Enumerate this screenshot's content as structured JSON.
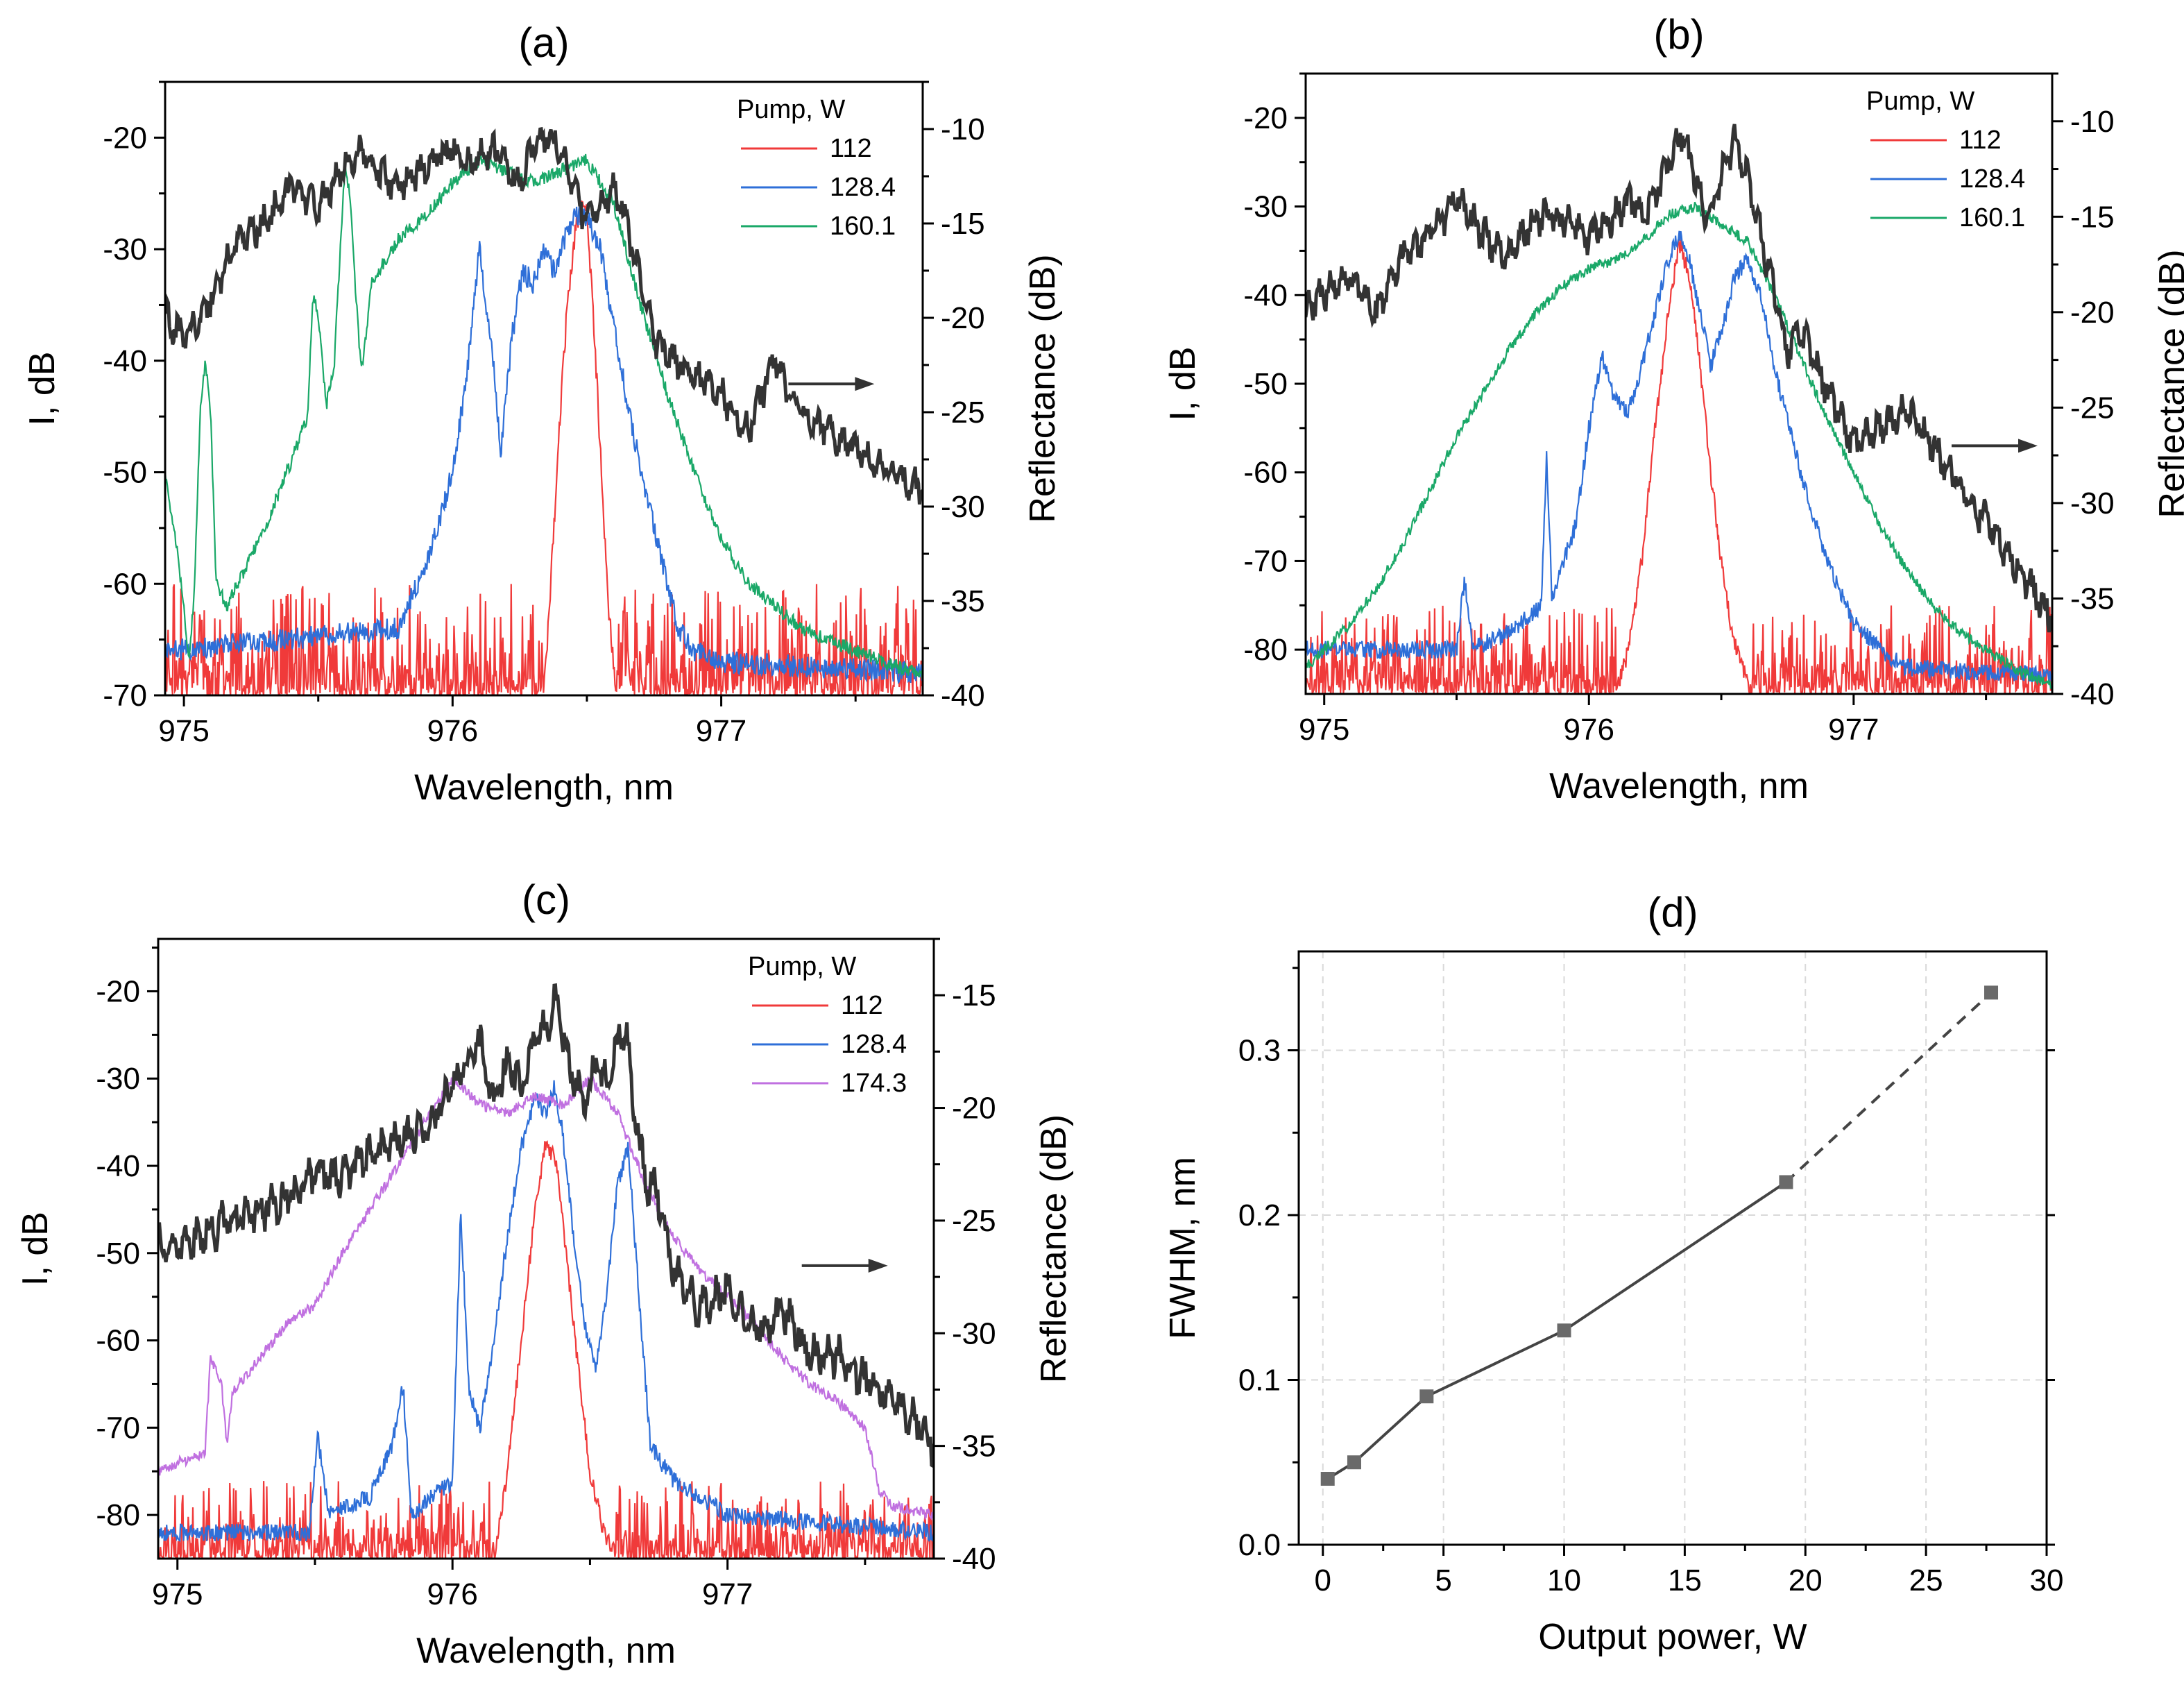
{
  "colors": {
    "red": "#f03a3a",
    "blue": "#2e6fd8",
    "green": "#1aa868",
    "purple": "#c070e0",
    "gray": "#333333",
    "marker": "#6a6a6a"
  },
  "chart_data": [
    {
      "panel": "a",
      "type": "line",
      "title": "(a)",
      "xlabel": "Wavelength, nm",
      "ylabel": "I, dB",
      "ylabel_right": "Reflectance (dB)",
      "xlim": [
        974.93,
        977.75
      ],
      "ylim": [
        -70,
        -15
      ],
      "ylim_right": [
        -40,
        -7.5
      ],
      "xticks": [
        975,
        976,
        977
      ],
      "xtick_labels": [
        "975",
        "976",
        "977"
      ],
      "yticks": [
        -70,
        -60,
        -50,
        -40,
        -30,
        -20
      ],
      "ytick_labels": [
        "-70",
        "-60",
        "-50",
        "-40",
        "-30",
        "-20"
      ],
      "yticks_right": [
        -40,
        -35,
        -30,
        -25,
        -20,
        -15,
        -10
      ],
      "ytick_labels_right": [
        "-40",
        "-35",
        "-30",
        "-25",
        "-20",
        "-15",
        "-10"
      ],
      "legend_title": "Pump, W",
      "noise_floor": [
        -70,
        -63
      ],
      "series": [
        {
          "name": "112",
          "color": "red",
          "noise": true,
          "x": [
            974.93,
            976.34,
            976.37,
            976.4,
            976.43,
            976.46,
            976.48,
            976.5,
            976.52,
            976.55,
            976.58,
            976.61,
            977.75
          ],
          "y": [
            -70,
            -70,
            -58,
            -45,
            -34,
            -28,
            -26,
            -27,
            -34,
            -48,
            -62,
            -70,
            -70
          ]
        },
        {
          "name": "128.4",
          "color": "blue",
          "noise": true,
          "x": [
            974.93,
            975.8,
            975.92,
            976.0,
            976.05,
            976.1,
            976.15,
            976.18,
            976.22,
            976.26,
            976.3,
            976.34,
            976.38,
            976.42,
            976.46,
            976.5,
            976.55,
            976.6,
            976.66,
            976.72,
            976.78,
            976.84,
            976.9,
            977.0,
            977.75
          ],
          "y": [
            -66,
            -64,
            -57,
            -50,
            -42,
            -30,
            -40,
            -48,
            -38,
            -32,
            -33,
            -30,
            -32,
            -29,
            -27,
            -27,
            -30,
            -37,
            -45,
            -52,
            -58,
            -64,
            -66,
            -67,
            -68
          ]
        },
        {
          "name": "160.1",
          "color": "green",
          "noise": false,
          "x": [
            974.93,
            974.98,
            975.02,
            975.04,
            975.06,
            975.08,
            975.1,
            975.12,
            975.16,
            975.2,
            975.3,
            975.4,
            975.46,
            975.48,
            975.5,
            975.53,
            975.56,
            975.6,
            975.62,
            975.64,
            975.66,
            975.7,
            975.8,
            975.9,
            976.0,
            976.1,
            976.2,
            976.3,
            976.4,
            976.5,
            976.6,
            976.7,
            976.8,
            976.9,
            977.0,
            977.1,
            977.2,
            977.3,
            977.4,
            977.5,
            977.6,
            977.75
          ],
          "y": [
            -50,
            -58,
            -67,
            -60,
            -45,
            -40,
            -45,
            -60,
            -62,
            -60,
            -55,
            -49,
            -45,
            -34,
            -36,
            -44,
            -40,
            -22,
            -26,
            -34,
            -41,
            -33,
            -29,
            -27,
            -24,
            -22,
            -23,
            -24,
            -23,
            -22,
            -26,
            -35,
            -43,
            -50,
            -56,
            -60,
            -62,
            -64,
            -65,
            -66,
            -67,
            -68
          ]
        },
        {
          "name": "Reflectance",
          "color": "gray",
          "noise": false,
          "axis": "right",
          "legend": false,
          "x": [
            974.93,
            975.0,
            975.1,
            975.2,
            975.3,
            975.4,
            975.5,
            975.6,
            975.65,
            975.7,
            975.8,
            975.9,
            976.0,
            976.05,
            976.1,
            976.15,
            976.2,
            976.25,
            976.3,
            976.35,
            976.4,
            976.45,
            976.5,
            976.55,
            976.6,
            976.65,
            976.7,
            976.75,
            976.8,
            976.9,
            977.0,
            977.1,
            977.2,
            977.25,
            977.3,
            977.4,
            977.5,
            977.6,
            977.75
          ],
          "y": [
            -20,
            -21,
            -19,
            -16,
            -15,
            -13,
            -14,
            -12,
            -11,
            -12,
            -13,
            -12,
            -11,
            -12,
            -11.5,
            -11,
            -12,
            -13,
            -11,
            -10.5,
            -11,
            -13,
            -15,
            -14,
            -13,
            -15,
            -18,
            -21,
            -22,
            -23,
            -24,
            -26,
            -22,
            -24,
            -25,
            -26,
            -27,
            -28,
            -29
          ]
        }
      ],
      "annotation_arrow": {
        "x": 977.25,
        "y": -23.5,
        "axis": "right",
        "direction": "right"
      }
    },
    {
      "panel": "b",
      "type": "line",
      "title": "(b)",
      "xlabel": "Wavelength, nm",
      "ylabel": "I, dB",
      "ylabel_right": "Reflectance (dB)",
      "xlim": [
        974.93,
        977.75
      ],
      "ylim": [
        -85,
        -15
      ],
      "ylim_right": [
        -40,
        -7.5
      ],
      "xticks": [
        975,
        976,
        977
      ],
      "xtick_labels": [
        "975",
        "976",
        "977"
      ],
      "yticks": [
        -80,
        -70,
        -60,
        -50,
        -40,
        -30,
        -20
      ],
      "ytick_labels": [
        "-80",
        "-70",
        "-60",
        "-50",
        "-40",
        "-30",
        "-20"
      ],
      "yticks_right": [
        -40,
        -35,
        -30,
        -25,
        -20,
        -15,
        -10
      ],
      "ytick_labels_right": [
        "-40",
        "-35",
        "-30",
        "-25",
        "-20",
        "-15",
        "-10"
      ],
      "legend_title": "Pump, W",
      "noise_floor": [
        -85,
        -78
      ],
      "series": [
        {
          "name": "112",
          "color": "red",
          "noise": true,
          "x": [
            974.93,
            976.1,
            976.15,
            976.2,
            976.25,
            976.3,
            976.34,
            976.38,
            976.42,
            976.46,
            976.5,
            976.54,
            976.58,
            976.62,
            977.75
          ],
          "y": [
            -85,
            -85,
            -80,
            -70,
            -55,
            -42,
            -34,
            -38,
            -48,
            -60,
            -70,
            -78,
            -82,
            -85,
            -85
          ]
        },
        {
          "name": "128.4",
          "color": "blue",
          "noise": true,
          "x": [
            974.93,
            975.5,
            975.53,
            975.56,
            975.7,
            975.82,
            975.84,
            975.86,
            975.95,
            976.0,
            976.05,
            976.1,
            976.15,
            976.2,
            976.25,
            976.3,
            976.34,
            976.38,
            976.42,
            976.46,
            976.5,
            976.55,
            976.6,
            976.65,
            976.7,
            976.8,
            976.9,
            977.0,
            977.1,
            977.2,
            977.75
          ],
          "y": [
            -80,
            -80,
            -72,
            -80,
            -78,
            -75,
            -58,
            -74,
            -66,
            -55,
            -47,
            -52,
            -53,
            -48,
            -42,
            -36,
            -33,
            -36,
            -42,
            -48,
            -44,
            -38,
            -36,
            -40,
            -48,
            -60,
            -70,
            -77,
            -80,
            -82,
            -83
          ]
        },
        {
          "name": "160.1",
          "color": "green",
          "noise": false,
          "x": [
            974.93,
            975.0,
            975.1,
            975.2,
            975.3,
            975.4,
            975.5,
            975.6,
            975.7,
            975.8,
            975.9,
            976.0,
            976.1,
            976.2,
            976.3,
            976.4,
            976.5,
            976.6,
            976.7,
            976.8,
            976.9,
            977.0,
            977.1,
            977.2,
            977.3,
            977.4,
            977.5,
            977.6,
            977.75
          ],
          "y": [
            -82,
            -80,
            -77,
            -73,
            -68,
            -62,
            -56,
            -51,
            -46,
            -42,
            -39,
            -37,
            -36,
            -34,
            -31,
            -30,
            -32,
            -34,
            -40,
            -47,
            -54,
            -60,
            -66,
            -71,
            -75,
            -78,
            -80,
            -82,
            -84
          ]
        },
        {
          "name": "Reflectance",
          "color": "gray",
          "noise": false,
          "axis": "right",
          "legend": false,
          "x": [
            974.93,
            975.0,
            975.1,
            975.2,
            975.3,
            975.4,
            975.5,
            975.6,
            975.7,
            975.8,
            975.9,
            976.0,
            976.1,
            976.15,
            976.2,
            976.25,
            976.3,
            976.35,
            976.4,
            976.45,
            976.5,
            976.55,
            976.6,
            976.65,
            976.7,
            976.75,
            976.8,
            976.9,
            977.0,
            977.1,
            977.2,
            977.3,
            977.4,
            977.5,
            977.6,
            977.7,
            977.75
          ],
          "y": [
            -20,
            -19,
            -18,
            -20,
            -17,
            -16,
            -14,
            -16,
            -17,
            -15,
            -15,
            -16,
            -15,
            -14,
            -15,
            -14,
            -12,
            -10.5,
            -13,
            -15,
            -13,
            -11,
            -13,
            -16,
            -19,
            -22,
            -21,
            -24,
            -27,
            -26,
            -25,
            -27,
            -29,
            -31,
            -33,
            -35,
            -36
          ]
        }
      ],
      "annotation_arrow": {
        "x": 977.37,
        "y": -27,
        "axis": "right",
        "direction": "right"
      }
    },
    {
      "panel": "c",
      "type": "line",
      "title": "(c)",
      "xlabel": "Wavelength, nm",
      "ylabel": "I, dB",
      "ylabel_right": "Reflectance (dB)",
      "xlim": [
        974.93,
        977.75
      ],
      "ylim": [
        -85,
        -14
      ],
      "ylim_right": [
        -40,
        -12.5
      ],
      "xticks": [
        975,
        976,
        977
      ],
      "xtick_labels": [
        "975",
        "976",
        "977"
      ],
      "yticks": [
        -80,
        -70,
        -60,
        -50,
        -40,
        -30,
        -20
      ],
      "ytick_labels": [
        "-80",
        "-70",
        "-60",
        "-50",
        "-40",
        "-30",
        "-20"
      ],
      "yticks_right": [
        -40,
        -35,
        -30,
        -25,
        -20,
        -15
      ],
      "ytick_labels_right": [
        "-40",
        "-35",
        "-30",
        "-25",
        "-20",
        "-15"
      ],
      "legend_title": "Pump, W",
      "noise_floor": [
        -85,
        -79
      ],
      "series": [
        {
          "name": "112",
          "color": "red",
          "noise": true,
          "x": [
            974.93,
            976.15,
            976.2,
            976.25,
            976.3,
            976.34,
            976.38,
            976.42,
            976.46,
            976.5,
            976.55,
            976.6,
            977.75
          ],
          "y": [
            -85,
            -85,
            -75,
            -60,
            -45,
            -37,
            -40,
            -52,
            -64,
            -75,
            -82,
            -85,
            -85
          ]
        },
        {
          "name": "128.4",
          "color": "blue",
          "noise": true,
          "x": [
            974.93,
            975.48,
            975.51,
            975.55,
            975.7,
            975.78,
            975.82,
            975.85,
            976.0,
            976.03,
            976.06,
            976.1,
            976.15,
            976.2,
            976.25,
            976.3,
            976.34,
            976.37,
            976.4,
            976.44,
            976.48,
            976.52,
            976.56,
            976.6,
            976.64,
            976.68,
            976.72,
            976.8,
            976.9,
            977.0,
            977.75
          ],
          "y": [
            -82,
            -82,
            -71,
            -80,
            -78,
            -72,
            -65,
            -80,
            -76,
            -45,
            -66,
            -70,
            -60,
            -48,
            -38,
            -32,
            -34,
            -31,
            -36,
            -48,
            -58,
            -63,
            -55,
            -42,
            -38,
            -56,
            -72,
            -76,
            -78,
            -80,
            -82
          ]
        },
        {
          "name": "174.3",
          "color": "purple",
          "noise": false,
          "x": [
            974.93,
            975.0,
            975.1,
            975.12,
            975.16,
            975.18,
            975.2,
            975.3,
            975.4,
            975.5,
            975.6,
            975.7,
            975.8,
            975.9,
            976.0,
            976.1,
            976.2,
            976.3,
            976.4,
            976.5,
            976.6,
            976.7,
            976.8,
            976.9,
            977.0,
            977.1,
            977.2,
            977.3,
            977.4,
            977.5,
            977.55,
            977.6,
            977.75
          ],
          "y": [
            -75,
            -74,
            -73,
            -62,
            -65,
            -72,
            -66,
            -62,
            -58,
            -56,
            -50,
            -45,
            -40,
            -35,
            -30,
            -33,
            -34,
            -32,
            -33,
            -30,
            -34,
            -42,
            -48,
            -52,
            -55,
            -58,
            -62,
            -65,
            -67,
            -70,
            -77,
            -79,
            -80
          ]
        },
        {
          "name": "Reflectance",
          "color": "gray",
          "noise": false,
          "axis": "right",
          "legend": false,
          "x": [
            974.93,
            975.0,
            975.1,
            975.2,
            975.3,
            975.4,
            975.5,
            975.6,
            975.7,
            975.8,
            975.9,
            976.0,
            976.05,
            976.1,
            976.15,
            976.2,
            976.25,
            976.3,
            976.35,
            976.38,
            976.42,
            976.48,
            976.52,
            976.56,
            976.6,
            976.63,
            976.66,
            976.7,
            976.75,
            976.8,
            976.9,
            977.0,
            977.1,
            977.2,
            977.3,
            977.4,
            977.5,
            977.6,
            977.7,
            977.75
          ],
          "y": [
            -26,
            -26.5,
            -25.5,
            -25,
            -24.5,
            -24,
            -23,
            -23,
            -22,
            -21.5,
            -21,
            -19,
            -18,
            -17,
            -20,
            -18,
            -19,
            -17,
            -16,
            -15,
            -18,
            -20,
            -18,
            -19,
            -17,
            -16.5,
            -20,
            -23,
            -24,
            -27,
            -29,
            -28,
            -30,
            -29,
            -31,
            -31,
            -32,
            -33,
            -34,
            -35
          ]
        }
      ],
      "annotation_arrow": {
        "x": 977.27,
        "y": -27,
        "axis": "right",
        "direction": "right"
      }
    },
    {
      "panel": "d",
      "type": "scatter",
      "title": "(d)",
      "xlabel": "Output power, W",
      "ylabel": "FWHM, nm",
      "xlim": [
        -1,
        30
      ],
      "ylim": [
        0,
        0.36
      ],
      "xticks": [
        0,
        5,
        10,
        15,
        20,
        25,
        30
      ],
      "xtick_labels": [
        "0",
        "5",
        "10",
        "15",
        "20",
        "25",
        "30"
      ],
      "yticks": [
        0.0,
        0.1,
        0.2,
        0.3
      ],
      "ytick_labels": [
        "0.0",
        "0.1",
        "0.2",
        "0.3"
      ],
      "grid": true,
      "series": [
        {
          "name": "FWHM",
          "color": "marker",
          "x": [
            0.2,
            1.3,
            4.3,
            10.0,
            19.2,
            27.7
          ],
          "y": [
            0.04,
            0.05,
            0.09,
            0.13,
            0.22,
            0.335
          ],
          "dashed_from_index": 4
        }
      ]
    }
  ]
}
